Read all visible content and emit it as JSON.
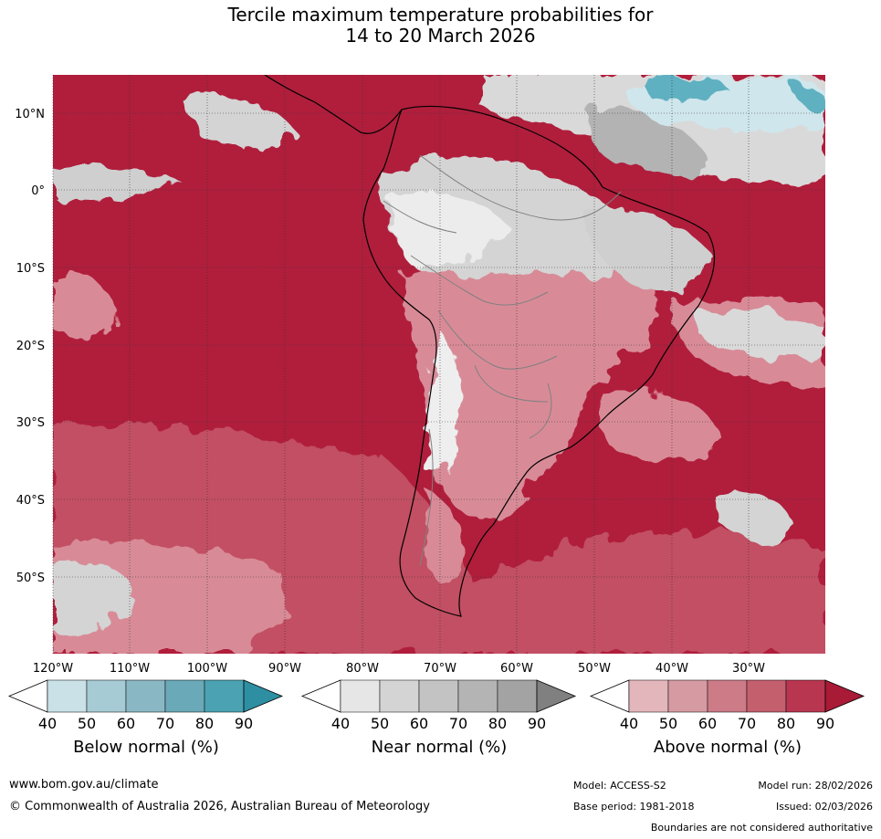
{
  "title": {
    "line1": "Tercile maximum temperature probabilities for",
    "line2": "14 to 20 March 2026"
  },
  "map": {
    "lat_labels": [
      "10°N",
      "0°",
      "10°S",
      "20°S",
      "30°S",
      "40°S",
      "50°S"
    ],
    "lon_labels": [
      "120°W",
      "110°W",
      "100°W",
      "90°W",
      "80°W",
      "70°W",
      "60°W",
      "50°W",
      "40°W",
      "30°W"
    ],
    "colors": {
      "above_bg": "#b01e3c",
      "above_mid": "#c24f63",
      "above_light": "#d88b97",
      "near_light": "#d9d9d9",
      "near_mid": "#b3b3b3",
      "below_light": "#cfe6ec",
      "below_mid": "#5fb0c0",
      "coast": "#000000",
      "border": "#808080"
    }
  },
  "colorbars": [
    {
      "name": "below",
      "label": "Below normal (%)",
      "ticks": [
        "40",
        "50",
        "60",
        "70",
        "80",
        "90"
      ],
      "colors": [
        "#ffffff",
        "#c9e1e7",
        "#a7cbd4",
        "#8ab7c4",
        "#6aa9b8",
        "#4aa2b3",
        "#2e8fa3"
      ]
    },
    {
      "name": "near",
      "label": "Near normal (%)",
      "ticks": [
        "40",
        "50",
        "60",
        "70",
        "80",
        "90"
      ],
      "colors": [
        "#ffffff",
        "#e6e6e6",
        "#d4d4d4",
        "#c3c3c3",
        "#b4b4b4",
        "#a3a3a3",
        "#808080"
      ]
    },
    {
      "name": "above",
      "label": "Above normal (%)",
      "ticks": [
        "40",
        "50",
        "60",
        "70",
        "80",
        "90"
      ],
      "colors": [
        "#ffffff",
        "#e3b6bc",
        "#d69aa3",
        "#cc7b87",
        "#c45f6e",
        "#b83650",
        "#a81a36"
      ]
    }
  ],
  "footer": {
    "website": "www.bom.gov.au/climate",
    "copyright": "© Commonwealth of Australia 2026, Australian Bureau of Meteorology",
    "model": "Model: ACCESS-S2",
    "base_period": "Base period: 1981-2018",
    "model_run": "Model run: 28/02/2026",
    "issued": "Issued: 02/03/2026",
    "disclaimer": "Boundaries are not considered authoritative"
  }
}
